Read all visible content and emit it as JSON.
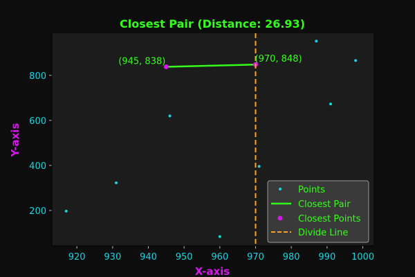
{
  "chart_data": {
    "type": "scatter",
    "title": "Closest Pair (Distance: 26.93)",
    "xlabel": "X-axis",
    "ylabel": "Y-axis",
    "xlim": [
      913,
      1003
    ],
    "ylim": [
      43,
      987
    ],
    "xticks": [
      920,
      930,
      940,
      950,
      960,
      970,
      980,
      990,
      1000
    ],
    "yticks": [
      200,
      400,
      600,
      800
    ],
    "points": [
      {
        "x": 917,
        "y": 197
      },
      {
        "x": 931,
        "y": 323
      },
      {
        "x": 946,
        "y": 620
      },
      {
        "x": 960,
        "y": 84
      },
      {
        "x": 971,
        "y": 396
      },
      {
        "x": 987,
        "y": 952
      },
      {
        "x": 991,
        "y": 673
      },
      {
        "x": 998,
        "y": 866
      }
    ],
    "closest_pair": [
      {
        "x": 945,
        "y": 838
      },
      {
        "x": 970,
        "y": 848
      }
    ],
    "closest_pair_labels": [
      "(945, 838)",
      "(970, 848)"
    ],
    "divide_line_x": 970,
    "legend": {
      "placement": "lower-right",
      "entries": [
        "Points",
        "Closest Pair",
        "Closest Points",
        "Divide Line"
      ]
    },
    "grid": false,
    "colors": {
      "background": "#0d0d0d",
      "plot_bg": "#1c1c1c",
      "points": "#19d3e0",
      "closest_pair": "#33ff1a",
      "closest_points": "#d11ae6",
      "divide_line": "#ffa51a",
      "title": "#33ff1a",
      "axis_label": "#d11ae6",
      "ticks": "#19d3e0"
    }
  }
}
